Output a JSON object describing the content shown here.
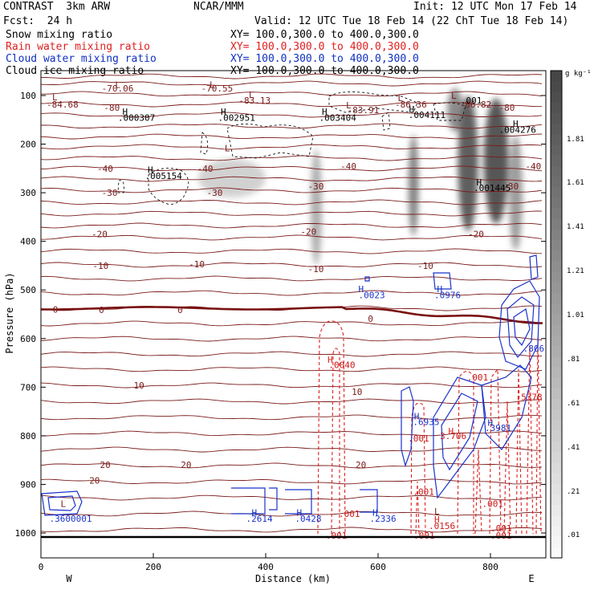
{
  "header": {
    "title_left": "CONTRAST  3km ARW",
    "title_center": "NCAR/MMM",
    "init": "Init: 12 UTC Mon 17 Feb 14",
    "fcst": "Fcst:  24 h",
    "valid": "Valid: 12 UTC Tue 18 Feb 14 (22 ChT Tue 18 Feb 14)"
  },
  "fields": [
    {
      "name": "Snow mixing ratio",
      "xy": "XY= 100.0,300.0 to 400.0,300.0",
      "color": "#000000"
    },
    {
      "name": "Rain water mixing ratio",
      "xy": "XY= 100.0,300.0 to 400.0,300.0",
      "color": "#e02020"
    },
    {
      "name": "Cloud water mixing ratio",
      "xy": "XY= 100.0,300.0 to 400.0,300.0",
      "color": "#1030c0"
    },
    {
      "name": "Cloud ice mixing ratio",
      "xy": "XY= 100.0,300.0 to 400.0,300.0",
      "color": "#000000"
    }
  ],
  "chart_data": {
    "type": "contour-cross-section",
    "xlabel": "Distance (km)",
    "ylabel": "Pressure (hPa)",
    "xlim": [
      0,
      895
    ],
    "ylim": [
      1045,
      50
    ],
    "x_ticks": [
      0,
      200,
      400,
      600,
      800
    ],
    "x_tick_labels": [
      "0",
      "200",
      "400",
      "600",
      "800"
    ],
    "y_ticks": [
      100,
      200,
      300,
      400,
      500,
      600,
      700,
      800,
      900,
      1000
    ],
    "y_tick_labels": [
      "100",
      "200",
      "300",
      "400",
      "500",
      "600",
      "700",
      "800",
      "900",
      "1000"
    ],
    "west_label": "W",
    "east_label": "E",
    "colorbar": {
      "unit": "g kg⁻¹",
      "labels": [
        "1.81",
        "1.61",
        "1.41",
        "1.21",
        "1.01",
        ".81",
        ".61",
        ".41",
        ".21",
        ".01"
      ]
    },
    "temperature_labels": [
      {
        "x": 10,
        "p": 118,
        "text": "-84.68"
      },
      {
        "x": 108,
        "p": 85,
        "text": "-70.06"
      },
      {
        "x": 285,
        "p": 85,
        "text": "-70.55"
      },
      {
        "x": 352,
        "p": 110,
        "text": "-83.13"
      },
      {
        "x": 545,
        "p": 130,
        "text": "-83.91"
      },
      {
        "x": 630,
        "p": 118,
        "text": "-86.36"
      },
      {
        "x": 745,
        "p": 118,
        "text": "-86.82"
      },
      {
        "x": 112,
        "p": 125,
        "text": "-80"
      },
      {
        "x": 815,
        "p": 125,
        "text": "-80"
      },
      {
        "x": 278,
        "p": 250,
        "text": "-40"
      },
      {
        "x": 533,
        "p": 245,
        "text": "-40"
      },
      {
        "x": 862,
        "p": 245,
        "text": "-40"
      },
      {
        "x": 100,
        "p": 250,
        "text": "-40"
      },
      {
        "x": 108,
        "p": 300,
        "text": "-30"
      },
      {
        "x": 295,
        "p": 300,
        "text": "-30"
      },
      {
        "x": 475,
        "p": 287,
        "text": "-30"
      },
      {
        "x": 822,
        "p": 287,
        "text": "-30"
      },
      {
        "x": 90,
        "p": 385,
        "text": "-20"
      },
      {
        "x": 462,
        "p": 380,
        "text": "-20"
      },
      {
        "x": 760,
        "p": 385,
        "text": "-20"
      },
      {
        "x": 92,
        "p": 450,
        "text": "-10"
      },
      {
        "x": 263,
        "p": 447,
        "text": "-10"
      },
      {
        "x": 475,
        "p": 457,
        "text": "-10"
      },
      {
        "x": 670,
        "p": 450,
        "text": "-10"
      },
      {
        "x": 21,
        "p": 540,
        "text": "0"
      },
      {
        "x": 103,
        "p": 541,
        "text": "0"
      },
      {
        "x": 243,
        "p": 541,
        "text": "0"
      },
      {
        "x": 582,
        "p": 559,
        "text": "0"
      },
      {
        "x": 165,
        "p": 696,
        "text": "10"
      },
      {
        "x": 553,
        "p": 709,
        "text": "10"
      },
      {
        "x": 105,
        "p": 860,
        "text": "20"
      },
      {
        "x": 249,
        "p": 860,
        "text": "20"
      },
      {
        "x": 560,
        "p": 860,
        "text": "20"
      },
      {
        "x": 86,
        "p": 892,
        "text": "20"
      }
    ],
    "snow_ice_labels": [
      {
        "x": 137,
        "p": 145,
        "text": ".000307"
      },
      {
        "x": 315,
        "p": 145,
        "text": ".002951"
      },
      {
        "x": 495,
        "p": 145,
        "text": ".003404"
      },
      {
        "x": 654,
        "p": 140,
        "text": ".004111"
      },
      {
        "x": 815,
        "p": 170,
        "text": ".004276"
      },
      {
        "x": 185,
        "p": 265,
        "text": ".005154"
      },
      {
        "x": 770,
        "p": 290,
        "text": ".001445"
      },
      {
        "x": 747,
        "p": 110,
        "text": ".001"
      }
    ],
    "rain_labels": [
      {
        "x": 512,
        "p": 654,
        "text": ".0040"
      },
      {
        "x": 758,
        "p": 680,
        "text": ".001"
      },
      {
        "x": 653,
        "p": 805,
        "text": ".001"
      },
      {
        "x": 710,
        "p": 800,
        "text": "3.706"
      },
      {
        "x": 690,
        "p": 985,
        "text": ".0156"
      },
      {
        "x": 530,
        "p": 960,
        "text": ".001"
      },
      {
        "x": 662,
        "p": 915,
        "text": ".001"
      },
      {
        "x": 785,
        "p": 940,
        "text": ".001"
      },
      {
        "x": 800,
        "p": 990,
        "text": ".001"
      },
      {
        "x": 507,
        "p": 1005,
        "text": ".001"
      },
      {
        "x": 663,
        "p": 1005,
        "text": ".001"
      },
      {
        "x": 800,
        "p": 1005,
        "text": ".001"
      },
      {
        "x": 845,
        "p": 720,
        "text": ".5378"
      }
    ],
    "cloud_water_labels": [
      {
        "x": 565,
        "p": 510,
        "text": ".0023"
      },
      {
        "x": 700,
        "p": 510,
        "text": ".0976"
      },
      {
        "x": 662,
        "p": 771,
        "text": ".6935"
      },
      {
        "x": 790,
        "p": 784,
        "text": ".3981"
      },
      {
        "x": 365,
        "p": 970,
        "text": ".2614"
      },
      {
        "x": 452,
        "p": 970,
        "text": ".0428"
      },
      {
        "x": 585,
        "p": 970,
        "text": ".2336"
      },
      {
        "x": 15,
        "p": 970,
        "text": ".3600001"
      },
      {
        "x": 858,
        "p": 620,
        "text": ".806"
      }
    ],
    "high_markers": [
      {
        "x": 145,
        "p": 133,
        "color": "#000000"
      },
      {
        "x": 320,
        "p": 133,
        "color": "#000000"
      },
      {
        "x": 500,
        "p": 133,
        "color": "#000000"
      },
      {
        "x": 655,
        "p": 128,
        "color": "#000000"
      },
      {
        "x": 840,
        "p": 158,
        "color": "#000000"
      },
      {
        "x": 190,
        "p": 253,
        "color": "#000000"
      },
      {
        "x": 775,
        "p": 278,
        "color": "#000000"
      },
      {
        "x": 565,
        "p": 498,
        "color": "#1030c0"
      },
      {
        "x": 705,
        "p": 498,
        "color": "#1030c0"
      },
      {
        "x": 510,
        "p": 643,
        "color": "#e02020"
      },
      {
        "x": 664,
        "p": 760,
        "color": "#1030c0"
      },
      {
        "x": 795,
        "p": 773,
        "color": "#1030c0"
      },
      {
        "x": 725,
        "p": 790,
        "color": "#e02020"
      },
      {
        "x": 375,
        "p": 958,
        "color": "#1030c0"
      },
      {
        "x": 455,
        "p": 958,
        "color": "#1030c0"
      },
      {
        "x": 590,
        "p": 958,
        "color": "#1030c0"
      },
      {
        "x": 700,
        "p": 972,
        "color": "#e02020"
      }
    ],
    "low_markers": [
      {
        "x": 20,
        "p": 103,
        "text": "L"
      },
      {
        "x": 132,
        "p": 78,
        "text": "L"
      },
      {
        "x": 300,
        "p": 78,
        "text": "L"
      },
      {
        "x": 370,
        "p": 98,
        "text": "L"
      },
      {
        "x": 635,
        "p": 105,
        "text": "L"
      },
      {
        "x": 730,
        "p": 100,
        "text": "L"
      },
      {
        "x": 543,
        "p": 120,
        "text": "L"
      },
      {
        "x": 327,
        "p": 208,
        "text": "L"
      },
      {
        "x": 35,
        "p": 940,
        "text": "L"
      },
      {
        "x": 700,
        "p": 955,
        "text": "L"
      }
    ],
    "snow_shading": [
      {
        "x": 340,
        "p": 270,
        "rx": 60,
        "rp": 40,
        "strength": 0.15
      },
      {
        "x": 490,
        "p": 330,
        "rx": 10,
        "rp": 120,
        "strength": 0.35
      },
      {
        "x": 663,
        "p": 285,
        "rx": 9,
        "rp": 105,
        "strength": 0.6
      },
      {
        "x": 737,
        "p": 130,
        "rx": 14,
        "rp": 45,
        "strength": 0.55
      },
      {
        "x": 760,
        "p": 240,
        "rx": 18,
        "rp": 140,
        "strength": 0.8
      },
      {
        "x": 810,
        "p": 235,
        "rx": 22,
        "rp": 130,
        "strength": 0.85
      },
      {
        "x": 845,
        "p": 300,
        "rx": 12,
        "rp": 120,
        "strength": 0.45
      }
    ]
  }
}
